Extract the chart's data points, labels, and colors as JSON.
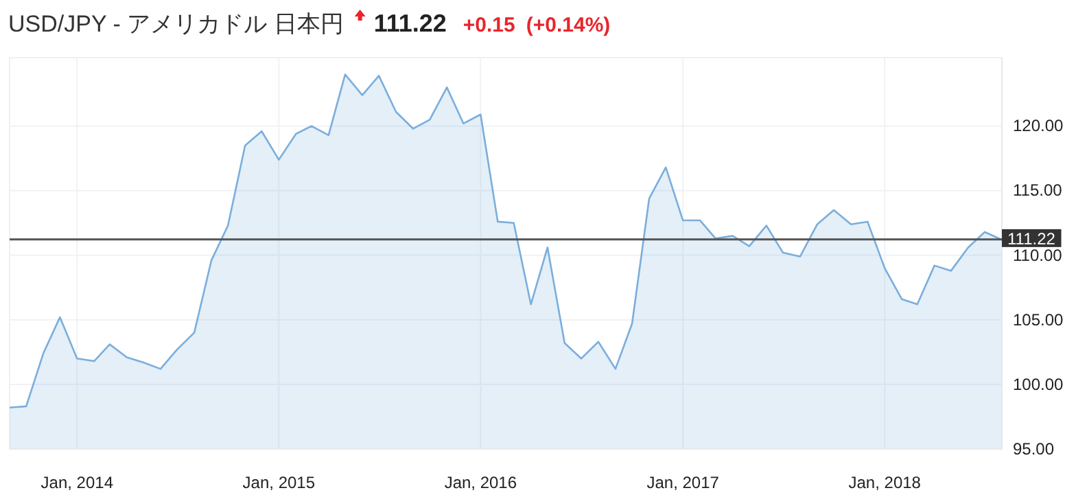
{
  "chart_data": {
    "type": "area",
    "title": "USD/JPY - アメリカドル 日本円",
    "annotations": [
      "111.22",
      "+0.15",
      "(+0.14%)"
    ],
    "x": [
      "2013-09",
      "2013-10",
      "2013-11",
      "2013-12",
      "2014-01",
      "2014-02",
      "2014-03",
      "2014-04",
      "2014-05",
      "2014-06",
      "2014-07",
      "2014-08",
      "2014-09",
      "2014-10",
      "2014-11",
      "2014-12",
      "2015-01",
      "2015-02",
      "2015-03",
      "2015-04",
      "2015-05",
      "2015-06",
      "2015-07",
      "2015-08",
      "2015-09",
      "2015-10",
      "2015-11",
      "2015-12",
      "2016-01",
      "2016-02",
      "2016-03",
      "2016-04",
      "2016-05",
      "2016-06",
      "2016-07",
      "2016-08",
      "2016-09",
      "2016-10",
      "2016-11",
      "2016-12",
      "2017-01",
      "2017-02",
      "2017-03",
      "2017-04",
      "2017-05",
      "2017-06",
      "2017-07",
      "2017-08",
      "2017-09",
      "2017-10",
      "2017-11",
      "2017-12",
      "2018-01",
      "2018-02",
      "2018-03",
      "2018-04",
      "2018-05",
      "2018-06",
      "2018-07",
      "2018-08"
    ],
    "series": [
      {
        "color": "#7aaedc",
        "values": [
          98.2,
          98.3,
          102.4,
          105.2,
          102.0,
          101.8,
          103.1,
          102.1,
          101.7,
          101.2,
          102.7,
          104.0,
          109.6,
          112.3,
          118.5,
          119.6,
          117.4,
          119.4,
          120.0,
          119.3,
          124.0,
          122.4,
          123.9,
          121.1,
          119.8,
          120.5,
          123.0,
          120.2,
          120.9,
          112.6,
          112.5,
          106.2,
          110.6,
          103.2,
          102.0,
          103.3,
          101.2,
          104.7,
          114.4,
          116.8,
          112.7,
          112.7,
          111.3,
          111.5,
          110.7,
          112.3,
          110.2,
          109.9,
          112.4,
          113.5,
          112.4,
          112.6,
          109.0,
          106.6,
          106.2,
          109.2,
          108.8,
          110.6,
          111.8,
          111.2
        ]
      }
    ],
    "xlim": [
      "2013-09",
      "2018-08"
    ],
    "xticks": [
      {
        "value": "2014-01",
        "label": "Jan, 2014"
      },
      {
        "value": "2015-01",
        "label": "Jan, 2015"
      },
      {
        "value": "2016-01",
        "label": "Jan, 2016"
      },
      {
        "value": "2017-01",
        "label": "Jan, 2017"
      },
      {
        "value": "2018-01",
        "label": "Jan, 2018"
      }
    ],
    "ylim": [
      95,
      125.3
    ],
    "yticks": [
      {
        "value": 95,
        "label": "95.00"
      },
      {
        "value": 100,
        "label": "100.00"
      },
      {
        "value": 105,
        "label": "105.00"
      },
      {
        "value": 110,
        "label": "110.00"
      },
      {
        "value": 115,
        "label": "115.00"
      },
      {
        "value": 120,
        "label": "120.00"
      }
    ],
    "ref_lines": [
      {
        "axis": "y",
        "value": 111.22,
        "label": "111.22",
        "color": "#555555"
      }
    ],
    "grid": true
  }
}
